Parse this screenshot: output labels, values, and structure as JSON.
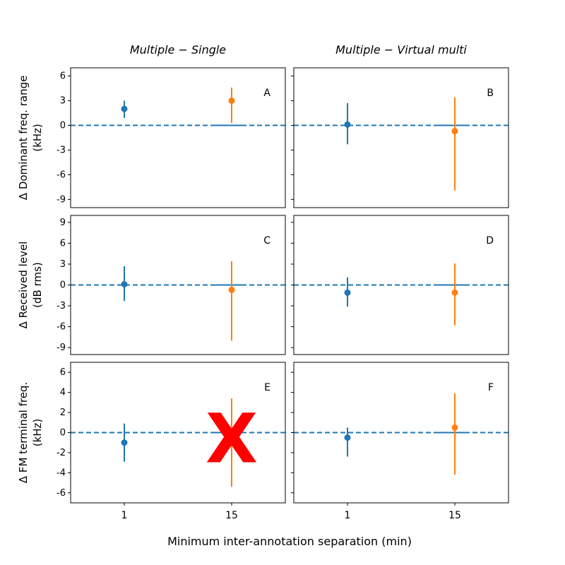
{
  "chart_data": {
    "type": "errorbar",
    "column_titles": [
      "Multiple − Single",
      "Multiple − Virtual multi"
    ],
    "row_ylabels": [
      [
        "Δ Dominant freq. range",
        "(kHz)"
      ],
      [
        "Δ Received level",
        "(dB rms)"
      ],
      [
        "Δ FM terminal freq.",
        "(kHz)"
      ]
    ],
    "xlabel": "Minimum inter-annotation separation (min)",
    "categories": [
      "1",
      "15"
    ],
    "series_colors": [
      "#1f77b4",
      "#ff7f0e"
    ],
    "reference_line": {
      "y": 0,
      "style": "dashed",
      "color": "#1f77b4"
    },
    "annotation": {
      "text": "X",
      "color": "#ff0000",
      "panel": "E",
      "at_category": "15"
    },
    "rows": [
      {
        "ylim": [
          -10,
          7
        ],
        "yticks": [
          -9,
          -6,
          -3,
          0,
          3,
          6
        ],
        "panels": [
          {
            "letter": "A",
            "points": [
              {
                "x": "1",
                "y": 2.0,
                "low": 0.9,
                "high": 3.0
              },
              {
                "x": "15",
                "y": 3.0,
                "low": 0.3,
                "high": 4.6
              }
            ]
          },
          {
            "letter": "B",
            "points": [
              {
                "x": "1",
                "y": 0.1,
                "low": -2.3,
                "high": 2.7
              },
              {
                "x": "15",
                "y": -0.7,
                "low": -7.9,
                "high": 3.4
              }
            ]
          }
        ]
      },
      {
        "ylim": [
          -10,
          10
        ],
        "yticks": [
          -9,
          -6,
          -3,
          0,
          3,
          6,
          9
        ],
        "panels": [
          {
            "letter": "C",
            "points": [
              {
                "x": "1",
                "y": 0.1,
                "low": -2.3,
                "high": 2.7
              },
              {
                "x": "15",
                "y": -0.7,
                "low": -8.0,
                "high": 3.4
              }
            ]
          },
          {
            "letter": "D",
            "points": [
              {
                "x": "1",
                "y": -1.1,
                "low": -3.1,
                "high": 1.1
              },
              {
                "x": "15",
                "y": -1.1,
                "low": -5.8,
                "high": 3.1
              }
            ]
          }
        ]
      },
      {
        "ylim": [
          -7,
          7
        ],
        "yticks": [
          -6,
          -4,
          -2,
          0,
          2,
          4,
          6
        ],
        "panels": [
          {
            "letter": "E",
            "points": [
              {
                "x": "1",
                "y": -1.0,
                "low": -2.9,
                "high": 0.9
              },
              {
                "x": "15",
                "y": -0.5,
                "low": -5.4,
                "high": 3.4
              }
            ]
          },
          {
            "letter": "F",
            "points": [
              {
                "x": "1",
                "y": -0.5,
                "low": -2.4,
                "high": 0.5
              },
              {
                "x": "15",
                "y": 0.5,
                "low": -4.2,
                "high": 3.9
              }
            ]
          }
        ]
      }
    ]
  }
}
